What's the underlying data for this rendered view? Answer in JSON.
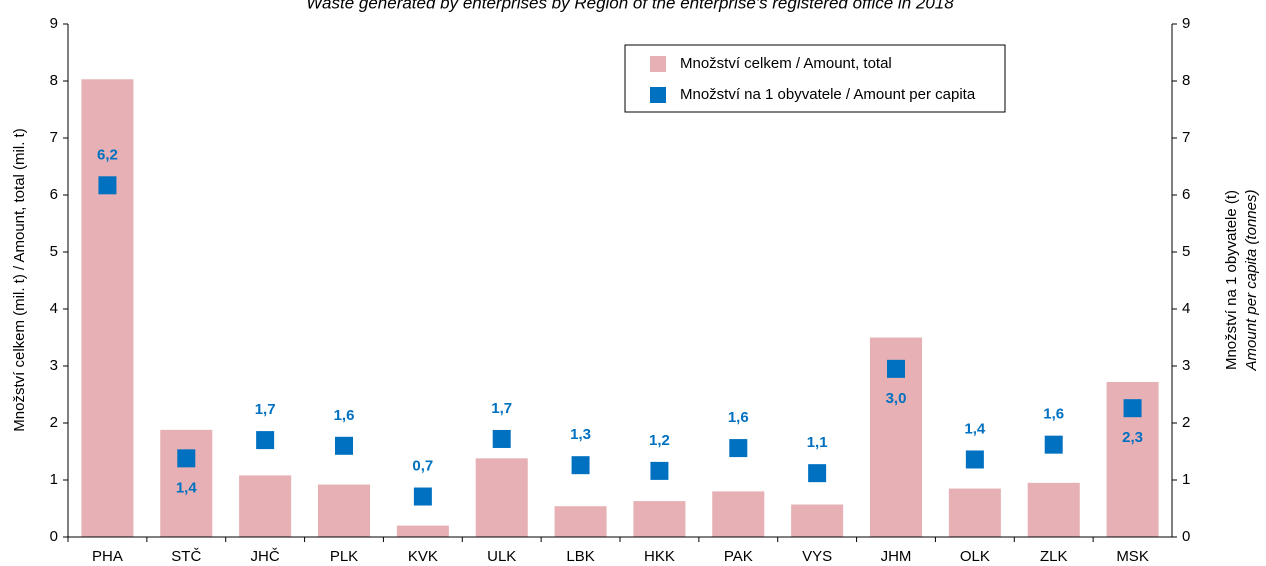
{
  "chart_data": {
    "type": "bar_scatter",
    "title": "Waste generated by enterprises by Region of the enterprise's registered office in 2018",
    "ylabel": "Množství celkem (mil. t) / Amount, total (mil. t)",
    "y2label": [
      "Množství na 1 obyvatele (t)",
      "Amount per capita (tonnes)"
    ],
    "categories": [
      "PHA",
      "STČ",
      "JHČ",
      "PLK",
      "KVK",
      "ULK",
      "LBK",
      "HKK",
      "PAK",
      "VYS",
      "JHM",
      "OLK",
      "ZLK",
      "MSK"
    ],
    "series": [
      {
        "name": "Množství celkem / Amount, total",
        "color": "#e6b0b5",
        "kind": "bar",
        "values": [
          8.03,
          1.88,
          1.08,
          0.92,
          0.2,
          1.38,
          0.54,
          0.63,
          0.8,
          0.57,
          3.5,
          0.85,
          0.95,
          2.72
        ]
      },
      {
        "name": "Množství na 1 obyvatele / Amount per capita",
        "color": "#0070c0",
        "kind": "marker",
        "axis": "y2",
        "values": [
          6.17,
          1.38,
          1.7,
          1.6,
          0.71,
          1.72,
          1.26,
          1.16,
          1.56,
          1.12,
          2.95,
          1.36,
          1.62,
          2.26
        ],
        "value_labels": [
          "6,2",
          "1,4",
          "1,7",
          "1,6",
          "0,7",
          "1,7",
          "1,3",
          "1,2",
          "1,6",
          "1,1",
          "3,0",
          "1,4",
          "1,6",
          "2,3"
        ]
      }
    ],
    "ylim": [
      0,
      9
    ],
    "yticks": [
      0,
      1,
      2,
      3,
      4,
      5,
      6,
      7,
      8,
      9
    ],
    "y2lim": [
      0,
      9
    ],
    "y2ticks": [
      0,
      1,
      2,
      3,
      4,
      5,
      6,
      7,
      8,
      9
    ],
    "grid": false
  }
}
